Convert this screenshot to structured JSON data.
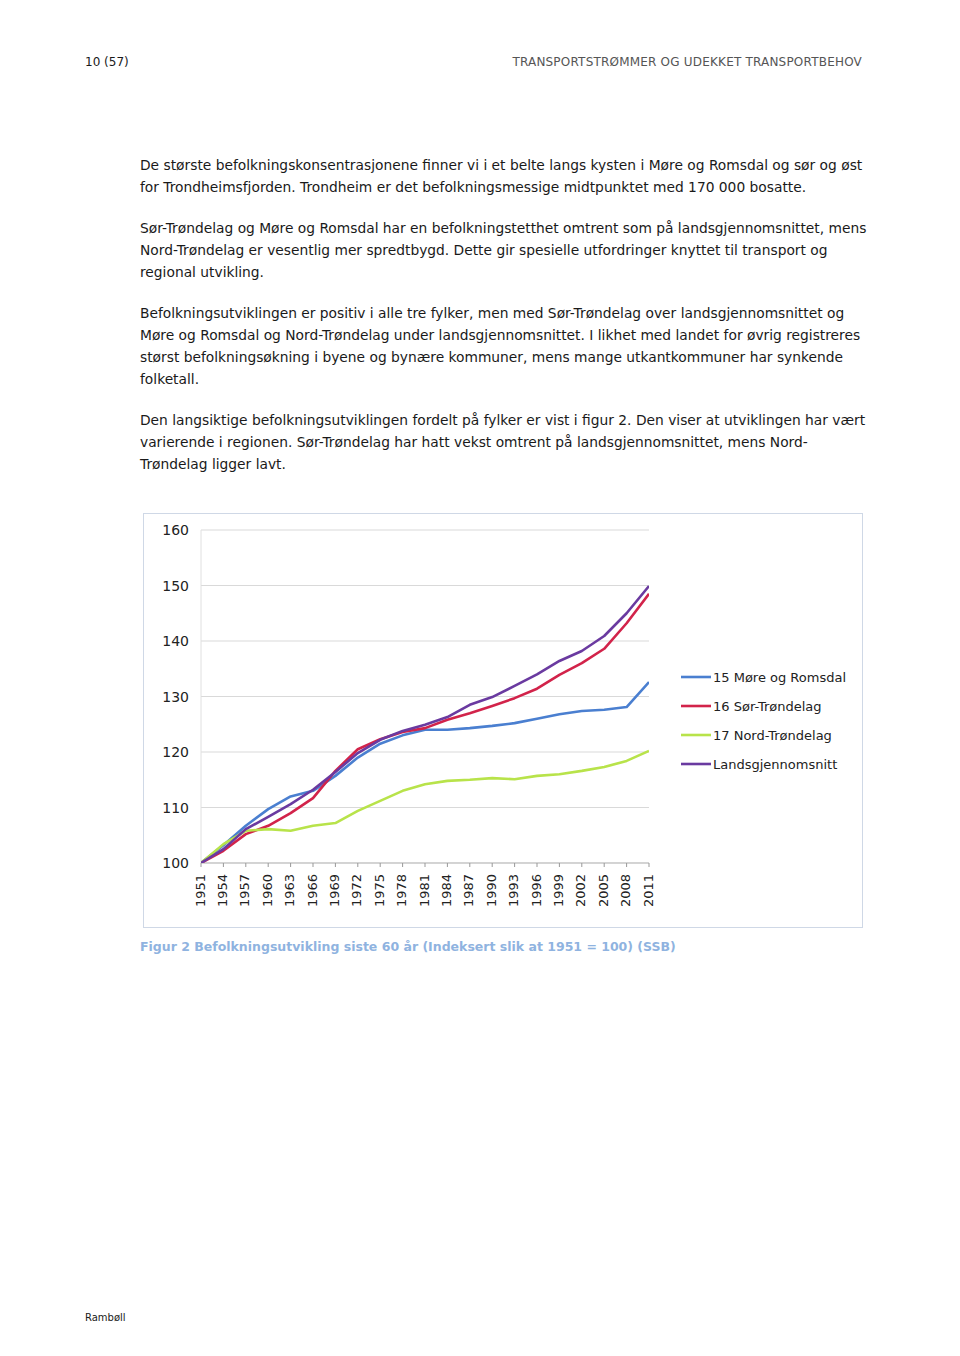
{
  "header": {
    "page": "10 (57)",
    "title": "TRANSPORTSTRØMMER OG UDEKKET TRANSPORTBEHOV"
  },
  "paragraphs": [
    "De største befolkningskonsentrasjonene finner vi i et belte langs kysten i Møre og Romsdal og sør og øst for Trondheimsfjorden. Trondheim er det befolkningsmessige midtpunktet med 170 000 bosatte.",
    "Sør-Trøndelag og Møre og Romsdal har en befolkningstetthet omtrent som på landsgjennomsnittet, mens Nord-Trøndelag er vesentlig mer spredtbygd. Dette gir spesielle utfordringer knyttet til transport og regional utvikling.",
    "Befolkningsutviklingen er positiv i alle tre fylker, men med Sør-Trøndelag over landsgjennomsnittet og Møre og Romsdal og Nord-Trøndelag under landsgjennomsnittet. I likhet med landet for øvrig registreres størst befolkningsøkning i byene og bynære kommuner, mens mange utkantkommuner har synkende folketall.",
    "Den langsiktige befolkningsutviklingen fordelt på fylker er vist i figur 2. Den viser at utviklingen har vært varierende i regionen. Sør-Trøndelag har hatt vekst omtrent på landsgjennomsnittet, mens Nord-Trøndelag ligger lavt."
  ],
  "chart_data": {
    "type": "line",
    "x": [
      1951,
      1954,
      1957,
      1960,
      1963,
      1966,
      1969,
      1972,
      1975,
      1978,
      1981,
      1984,
      1987,
      1990,
      1993,
      1996,
      1999,
      2002,
      2005,
      2008,
      2011
    ],
    "series": [
      {
        "name": "15 Møre og Romsdal",
        "color": "#4a7fd0",
        "values": [
          100,
          103.2,
          106.7,
          109.7,
          112,
          113,
          115.7,
          119,
          121.5,
          123,
          124,
          124,
          124.3,
          124.7,
          125.2,
          126,
          126.8,
          127.4,
          127.6,
          128.1,
          132.6
        ]
      },
      {
        "name": "16 Sør-Trøndelag",
        "color": "#d2234a",
        "values": [
          100,
          102.2,
          105.2,
          106.7,
          109,
          111.7,
          116.6,
          120.5,
          122.3,
          123.6,
          124.3,
          125.8,
          127,
          128.3,
          129.7,
          131.4,
          133.9,
          136,
          138.6,
          143.2,
          148.5
        ]
      },
      {
        "name": "17 Nord-Trøndelag",
        "color": "#b8e34a",
        "values": [
          100,
          103.4,
          105.8,
          106.1,
          105.8,
          106.7,
          107.2,
          109.4,
          111.2,
          113,
          114.2,
          114.8,
          115,
          115.3,
          115.1,
          115.7,
          116,
          116.6,
          117.3,
          118.4,
          120.2
        ]
      },
      {
        "name": "Landsgjennomsnitt",
        "color": "#6a3aa0",
        "values": [
          100,
          102.5,
          106.1,
          108.3,
          110.6,
          113.2,
          116.4,
          119.8,
          122.2,
          123.8,
          124.9,
          126.3,
          128.5,
          129.9,
          131.9,
          134,
          136.4,
          138.2,
          140.9,
          145,
          149.9
        ]
      }
    ],
    "xlim": [
      1951,
      2011
    ],
    "xticks": [
      1951,
      1954,
      1957,
      1960,
      1963,
      1966,
      1969,
      1972,
      1975,
      1978,
      1981,
      1984,
      1987,
      1990,
      1993,
      1996,
      1999,
      2002,
      2005,
      2008,
      2011
    ],
    "ylim": [
      100,
      160
    ],
    "yticks": [
      100,
      110,
      120,
      130,
      140,
      150,
      160
    ],
    "grid": true,
    "legend": "right"
  },
  "caption": "Figur 2 Befolkningsutvikling siste 60 år (Indeksert slik at 1951 = 100) (SSB)",
  "footer": "Rambøll"
}
